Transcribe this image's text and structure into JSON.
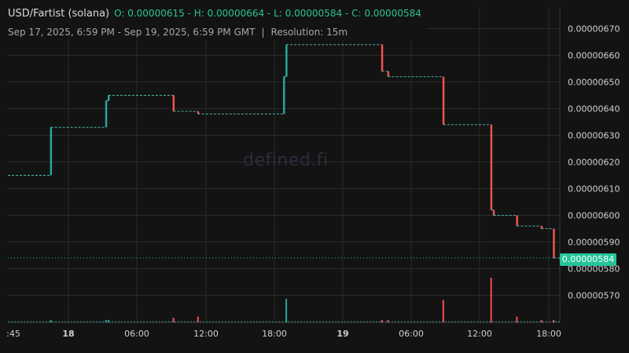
{
  "legend": {
    "pair": "USD/Fartist (solana)",
    "ohlc": "O: 0.00000615 - H: 0.00000664 - L: 0.00000584 - C: 0.00000584",
    "range": "Sep 17, 2025, 6:59 PM - Sep 19, 2025, 6:59 PM GMT",
    "separator": "|",
    "resolution": "Resolution: 15m"
  },
  "watermark": "defined.fi",
  "last_price_label": "0.00000584",
  "colors": {
    "up": "#26a69a",
    "down": "#ef5350",
    "bg": "#131313",
    "grid": "#2a2a2a",
    "badge": "#26c49a"
  },
  "chart_data": {
    "type": "candlestick",
    "y_ticks": [
      "0.00000570",
      "0.00000580",
      "0.00000590",
      "0.00000600",
      "0.00000610",
      "0.00000620",
      "0.00000630",
      "0.00000640",
      "0.00000650",
      "0.00000660",
      "0.00000670"
    ],
    "x_ticks": [
      ":45",
      "18",
      "06:00",
      "12:00",
      "18:00",
      "19",
      "06:00",
      "12:00",
      "18:00"
    ],
    "last_price": 5.84e-06,
    "candles": [
      {
        "t": 0,
        "o": 6.15e-06,
        "c": 6.15e-06
      },
      {
        "t": 3.5,
        "o": 6.15e-06,
        "c": 6.33e-06
      },
      {
        "t": 8,
        "o": 6.33e-06,
        "c": 6.43e-06
      },
      {
        "t": 8.2,
        "o": 6.43e-06,
        "c": 6.45e-06
      },
      {
        "t": 13.5,
        "o": 6.45e-06,
        "c": 6.39e-06
      },
      {
        "t": 15.5,
        "o": 6.39e-06,
        "c": 6.38e-06
      },
      {
        "t": 22.5,
        "o": 6.38e-06,
        "c": 6.52e-06
      },
      {
        "t": 22.7,
        "o": 6.52e-06,
        "c": 6.64e-06
      },
      {
        "t": 30.5,
        "o": 6.64e-06,
        "c": 6.54e-06
      },
      {
        "t": 31,
        "o": 6.54e-06,
        "c": 6.52e-06
      },
      {
        "t": 35.5,
        "o": 6.52e-06,
        "c": 6.34e-06
      },
      {
        "t": 39.4,
        "o": 6.34e-06,
        "c": 6.02e-06
      },
      {
        "t": 39.6,
        "o": 6.02e-06,
        "c": 6e-06
      },
      {
        "t": 41.5,
        "o": 6e-06,
        "c": 5.96e-06
      },
      {
        "t": 43.5,
        "o": 5.96e-06,
        "c": 5.95e-06
      },
      {
        "t": 44.5,
        "o": 5.95e-06,
        "c": 5.84e-06
      }
    ],
    "volumes": [
      {
        "t": 3.5,
        "v": 2,
        "dir": "up"
      },
      {
        "t": 8,
        "v": 2,
        "dir": "up"
      },
      {
        "t": 8.2,
        "v": 2,
        "dir": "up"
      },
      {
        "t": 13.5,
        "v": 4,
        "dir": "down"
      },
      {
        "t": 15.5,
        "v": 5,
        "dir": "down"
      },
      {
        "t": 22.7,
        "v": 20,
        "dir": "up"
      },
      {
        "t": 30.5,
        "v": 2,
        "dir": "down"
      },
      {
        "t": 31,
        "v": 2,
        "dir": "down"
      },
      {
        "t": 35.5,
        "v": 19,
        "dir": "down"
      },
      {
        "t": 39.4,
        "v": 38,
        "dir": "down"
      },
      {
        "t": 41.5,
        "v": 5,
        "dir": "down"
      },
      {
        "t": 43.5,
        "v": 2,
        "dir": "down"
      },
      {
        "t": 44.5,
        "v": 2,
        "dir": "down"
      }
    ]
  }
}
